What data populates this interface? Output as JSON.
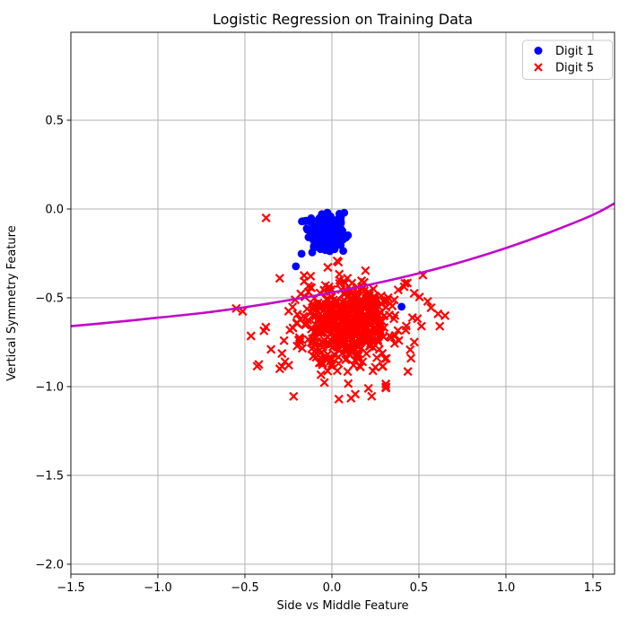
{
  "figure": {
    "background": "#ffffff"
  },
  "chart_data": {
    "type": "scatter",
    "title": "Logistic Regression on Training Data",
    "xlabel": "Side vs Middle Feature",
    "ylabel": "Vertical Symmetry Feature",
    "xlim": [
      -1.5,
      1.624
    ],
    "ylim": [
      -2.056,
      0.995
    ],
    "xticks": [
      -1.5,
      -1.0,
      -0.5,
      0.0,
      0.5,
      1.0,
      1.5
    ],
    "yticks": [
      0.5,
      0.0,
      -0.5,
      -1.0,
      -1.5,
      -2.0
    ],
    "grid": true,
    "grid_color": "#b0b0b0",
    "spine_color": "#1a1a1a",
    "tick_color": "#1a1a1a",
    "legend_position": "upper right",
    "series": [
      {
        "name": "Digit 1",
        "marker": "circle",
        "color": "#0000ff",
        "marker_size": 9,
        "clusters": [
          {
            "cx": -0.03,
            "cy": -0.135,
            "sx": 0.055,
            "sy": 0.052,
            "n": 300,
            "seed": 11,
            "bounds": [
              -0.225,
              0.095,
              -0.285,
              -0.02
            ]
          }
        ],
        "outliers": [
          [
            -0.207,
            -0.323
          ],
          [
            0.4,
            -0.55
          ]
        ]
      },
      {
        "name": "Digit 5",
        "marker": "x",
        "color": "#ff0000",
        "marker_size": 9,
        "clusters": [
          {
            "cx": 0.09,
            "cy": -0.645,
            "sx": 0.125,
            "sy": 0.115,
            "n": 380,
            "seed": 99,
            "bounds": [
              -0.47,
              0.66,
              -1.07,
              -0.27
            ]
          },
          {
            "cx": 0.07,
            "cy": -0.67,
            "sx": 0.21,
            "sy": 0.17,
            "n": 150,
            "seed": 57,
            "bounds": [
              -0.47,
              0.66,
              -1.07,
              -0.27
            ]
          }
        ],
        "outliers": [
          [
            -0.378,
            -0.05
          ],
          [
            -0.3,
            -0.39
          ],
          [
            -0.513,
            -0.576
          ],
          [
            -0.55,
            -0.56
          ],
          [
            -0.465,
            -0.715
          ],
          [
            -0.38,
            -0.665
          ],
          [
            -0.43,
            -0.885
          ],
          [
            -0.42,
            -0.875
          ],
          [
            -0.3,
            -0.9
          ],
          [
            -0.35,
            -0.79
          ],
          [
            -0.27,
            -0.86
          ],
          [
            -0.22,
            -1.055
          ],
          [
            0.11,
            -1.065
          ],
          [
            0.21,
            -1.01
          ],
          [
            0.31,
            -0.985
          ],
          [
            0.04,
            -1.07
          ],
          [
            0.57,
            -0.556
          ],
          [
            0.61,
            -0.59
          ],
          [
            0.65,
            -0.6
          ],
          [
            0.62,
            -0.66
          ],
          [
            0.55,
            -0.52
          ]
        ]
      }
    ],
    "curve": {
      "name": "decision boundary",
      "color": "#c208c8",
      "width": 2.6,
      "points": [
        [
          -1.5,
          -0.66
        ],
        [
          -1.25,
          -0.637
        ],
        [
          -1.0,
          -0.612
        ],
        [
          -0.75,
          -0.586
        ],
        [
          -0.5,
          -0.553
        ],
        [
          -0.25,
          -0.514
        ],
        [
          0.0,
          -0.47
        ],
        [
          0.25,
          -0.419
        ],
        [
          0.5,
          -0.362
        ],
        [
          0.75,
          -0.296
        ],
        [
          1.0,
          -0.22
        ],
        [
          1.25,
          -0.132
        ],
        [
          1.5,
          -0.033
        ],
        [
          1.624,
          0.032
        ]
      ]
    }
  }
}
